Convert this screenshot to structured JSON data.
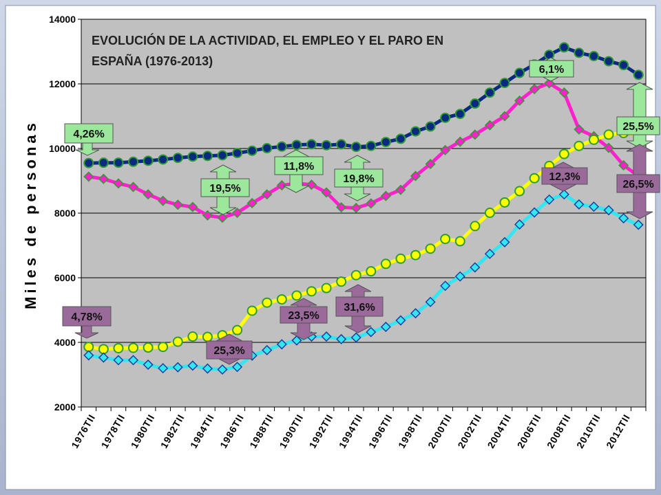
{
  "colors": {
    "plot_bg": "#c0c0c0",
    "activos": "#0a2a80",
    "ocupados": "#ff22cc",
    "parados": "#ffff00",
    "marker_edge": "#2e9b2e",
    "cyan": "#33e6f0",
    "green_badge": "#9be79b",
    "purple_badge": "#9a6a9a"
  },
  "chart_data": {
    "type": "line",
    "title": "EVOLUCIÓN DE LA ACTIVIDAD, EL EMPLEO Y EL PARO EN",
    "subtitle": "ESPAÑA (1976-2013)",
    "ylabel": "Miles de personas",
    "xlabel": "",
    "ylim": [
      2000,
      14000
    ],
    "yticks": [
      "2000",
      "4000",
      "6000",
      "8000",
      "10000",
      "12000",
      "14000"
    ],
    "grid": true,
    "x_tick_labels": [
      "1976TII",
      "1978TII",
      "1980TII",
      "1982TII",
      "1984TII",
      "1986TII",
      "1988TII",
      "1990TII",
      "1992TII",
      "1994TII",
      "1996TII",
      "1998TII",
      "2000TII",
      "2002TII",
      "2004TII",
      "2006TII",
      "2008TII",
      "2010TII",
      "2012TII"
    ],
    "x_count": 38,
    "series": [
      {
        "color_key": "activos",
        "marker": "circle",
        "values": [
          9550,
          9560,
          9560,
          9590,
          9620,
          9660,
          9710,
          9750,
          9770,
          9790,
          9860,
          9930,
          10010,
          10060,
          10110,
          10130,
          10100,
          10130,
          10050,
          10080,
          10200,
          10300,
          10530,
          10680,
          10950,
          11070,
          11390,
          11730,
          12030,
          12340,
          12600,
          12900,
          13130,
          12960,
          12860,
          12700,
          12580,
          12280
        ]
      },
      {
        "color_key": "ocupados",
        "marker": "diamond",
        "values": [
          9130,
          9060,
          8920,
          8810,
          8580,
          8380,
          8260,
          8190,
          7930,
          7860,
          8010,
          8310,
          8580,
          8860,
          8920,
          8880,
          8640,
          8180,
          8160,
          8300,
          8530,
          8720,
          9150,
          9520,
          9950,
          10210,
          10430,
          10720,
          11000,
          11480,
          11840,
          12020,
          11730,
          10590,
          10380,
          10020,
          9480,
          9150
        ]
      },
      {
        "color_key": "parados",
        "marker": "circle",
        "values": [
          3860,
          3790,
          3820,
          3830,
          3840,
          3860,
          4020,
          4180,
          4170,
          4220,
          4380,
          4980,
          5230,
          5330,
          5450,
          5580,
          5680,
          5880,
          6080,
          6200,
          6430,
          6590,
          6700,
          6900,
          7200,
          7130,
          7600,
          8010,
          8330,
          8680,
          9080,
          9460,
          9830,
          10080,
          10270,
          10430,
          10480,
          10430
        ]
      },
      {
        "color_key": "cyan",
        "marker": "diamond",
        "values": [
          3600,
          3530,
          3450,
          3450,
          3310,
          3200,
          3230,
          3280,
          3190,
          3160,
          3240,
          3590,
          3760,
          3940,
          4060,
          4180,
          4180,
          4100,
          4150,
          4320,
          4480,
          4680,
          4900,
          5250,
          5750,
          6040,
          6320,
          6740,
          7100,
          7650,
          8020,
          8420,
          8580,
          8270,
          8200,
          8090,
          7840,
          7640
        ]
      }
    ],
    "annotations": [
      {
        "text": "4,26%",
        "style": "green"
      },
      {
        "text": "19,5%",
        "style": "green"
      },
      {
        "text": "11,8%",
        "style": "green"
      },
      {
        "text": "19,8%",
        "style": "green"
      },
      {
        "text": "6,1%",
        "style": "green"
      },
      {
        "text": "25,5%",
        "style": "green"
      },
      {
        "text": "12,3%",
        "style": "purple"
      },
      {
        "text": "26,5%",
        "style": "purple"
      },
      {
        "text": "4,78%",
        "style": "purple"
      },
      {
        "text": "25,3%",
        "style": "purple"
      },
      {
        "text": "23,5%",
        "style": "purple"
      },
      {
        "text": "31,6%",
        "style": "purple"
      }
    ]
  }
}
